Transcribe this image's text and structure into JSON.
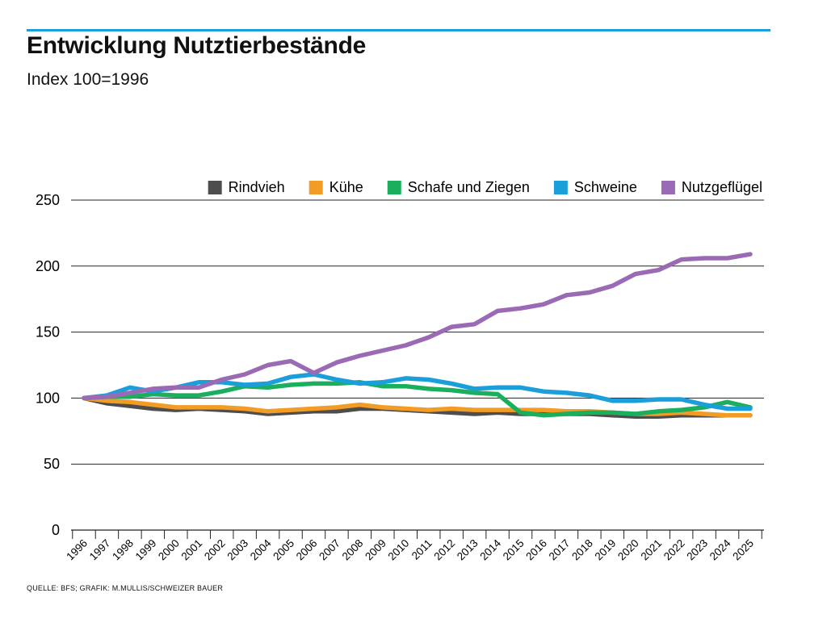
{
  "header": {
    "title": "Entwicklung Nutztierbestände",
    "subtitle": "Index 100=1996"
  },
  "footer": {
    "source": "QUELLE: BFS; GRAFIK: M.MULLIS/SCHWEIZER BAUER"
  },
  "chart_data": {
    "type": "line",
    "title": "Entwicklung Nutztierbestände",
    "subtitle": "Index 100=1996",
    "xlabel": "",
    "ylabel": "",
    "ylim": [
      0,
      250
    ],
    "yticks": [
      0,
      50,
      100,
      150,
      200,
      250
    ],
    "grid": true,
    "legend": "top-right",
    "x": [
      "1996",
      "1997",
      "1998",
      "1999",
      "2000",
      "2001",
      "2002",
      "2003",
      "2004",
      "2005",
      "2006",
      "2007",
      "2008",
      "2009",
      "2010",
      "2011",
      "2012",
      "2013",
      "2014",
      "2015",
      "2016",
      "2017",
      "2018",
      "2019",
      "2020",
      "2021",
      "2022",
      "2023",
      "2024",
      "2025"
    ],
    "series": [
      {
        "name": "Rindvieh",
        "color": "#4d4d4d",
        "values": [
          100,
          96,
          94,
          92,
          91,
          92,
          91,
          90,
          88,
          89,
          90,
          90,
          92,
          92,
          91,
          90,
          89,
          88,
          89,
          88,
          88,
          88,
          88,
          87,
          86,
          86,
          87,
          87,
          87,
          87
        ]
      },
      {
        "name": "Kühe",
        "color": "#f39c25",
        "values": [
          100,
          98,
          97,
          95,
          93,
          93,
          93,
          92,
          90,
          91,
          92,
          93,
          95,
          93,
          92,
          91,
          92,
          91,
          91,
          91,
          91,
          90,
          90,
          89,
          88,
          88,
          89,
          88,
          87,
          87
        ]
      },
      {
        "name": "Schafe und Ziegen",
        "color": "#1aaf5d",
        "values": [
          100,
          101,
          101,
          103,
          102,
          102,
          105,
          109,
          108,
          110,
          111,
          111,
          112,
          109,
          109,
          107,
          106,
          104,
          103,
          89,
          87,
          88,
          89,
          89,
          88,
          90,
          91,
          93,
          97,
          93
        ]
      },
      {
        "name": "Schweine",
        "color": "#1a9fdb",
        "values": [
          100,
          102,
          108,
          105,
          108,
          112,
          112,
          110,
          111,
          116,
          118,
          114,
          111,
          112,
          115,
          114,
          111,
          107,
          108,
          108,
          105,
          104,
          102,
          98,
          98,
          99,
          99,
          95,
          92,
          92
        ]
      },
      {
        "name": "Nutzgeflügel",
        "color": "#9b6ab5",
        "values": [
          100,
          101,
          104,
          107,
          108,
          108,
          114,
          118,
          125,
          128,
          119,
          127,
          132,
          136,
          140,
          146,
          154,
          156,
          166,
          168,
          171,
          178,
          180,
          185,
          194,
          197,
          205,
          206,
          206,
          209
        ]
      }
    ]
  }
}
